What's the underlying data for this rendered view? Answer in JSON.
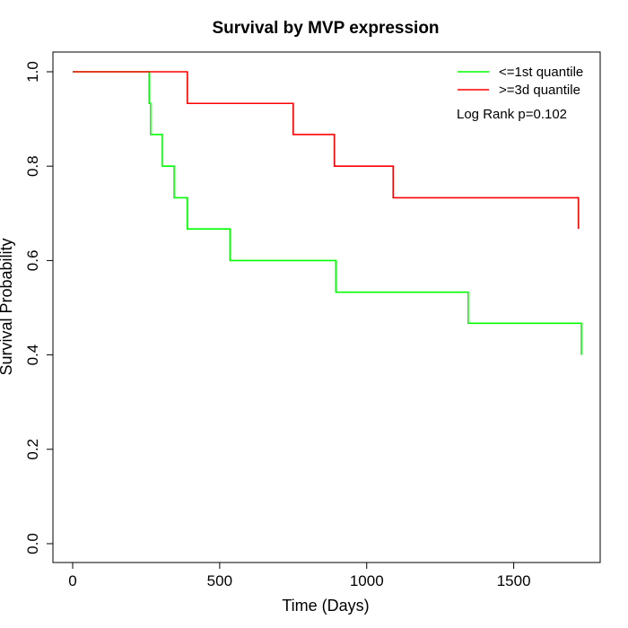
{
  "chart_data": {
    "type": "line",
    "title": "Survival by MVP expression",
    "xlabel": "Time (Days)",
    "ylabel": "Survival Probability",
    "xlim": [
      0,
      1730
    ],
    "ylim": [
      0,
      1.0
    ],
    "xticks": [
      0,
      500,
      1000,
      1500
    ],
    "yticks": [
      0.0,
      0.2,
      0.4,
      0.6,
      0.8,
      1.0
    ],
    "xtick_labels": [
      "0",
      "500",
      "1000",
      "1500"
    ],
    "ytick_labels": [
      "0.0",
      "0.2",
      "0.4",
      "0.6",
      "0.8",
      "1.0"
    ],
    "grid": false,
    "legend_position": "top-right",
    "annotation": "Log Rank p=0.102",
    "series": [
      {
        "name": "<=1st quantile",
        "color": "#00ff00",
        "step_x": [
          0,
          255,
          260,
          265,
          305,
          345,
          390,
          535,
          895,
          1345,
          1730
        ],
        "step_y": [
          1.0,
          1.0,
          0.933,
          0.867,
          0.8,
          0.733,
          0.667,
          0.6,
          0.533,
          0.467,
          0.4
        ]
      },
      {
        "name": ">=3d quantile",
        "color": "#ff0000",
        "step_x": [
          0,
          345,
          390,
          750,
          890,
          1090,
          1720
        ],
        "step_y": [
          1.0,
          1.0,
          0.933,
          0.867,
          0.8,
          0.733,
          0.667
        ]
      }
    ]
  }
}
